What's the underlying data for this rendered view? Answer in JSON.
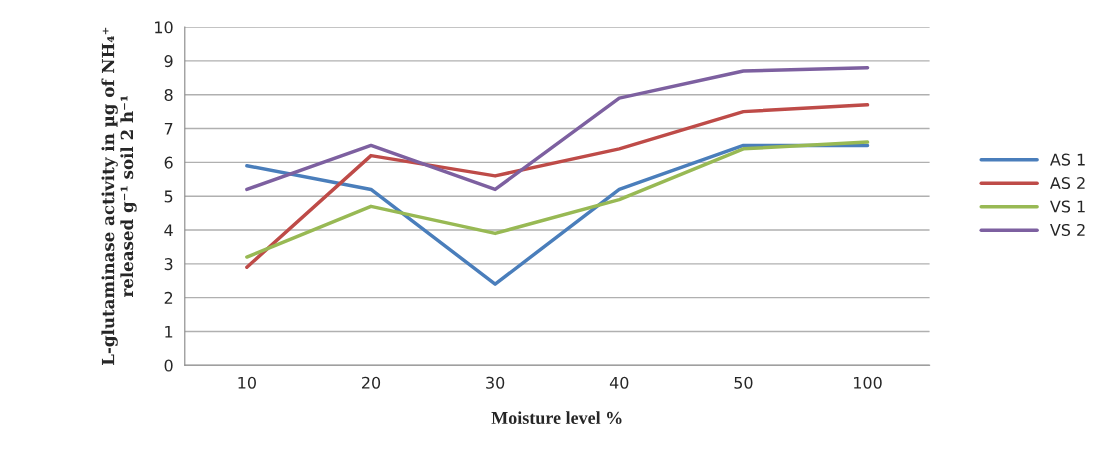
{
  "chart_data": {
    "type": "line",
    "xlabel": "Moisture level %",
    "ylabel": "L-glutaminase activity in µg of NH₄⁺\nreleased g⁻¹ soil 2 h⁻¹",
    "categories": [
      "10",
      "20",
      "30",
      "40",
      "50",
      "100"
    ],
    "series": [
      {
        "name": "AS 1",
        "color": "#4a7ebb",
        "values": [
          5.9,
          5.2,
          2.4,
          5.2,
          6.5,
          6.5
        ]
      },
      {
        "name": "AS 2",
        "color": "#be4b48",
        "values": [
          2.9,
          6.2,
          5.6,
          6.4,
          7.5,
          7.7
        ]
      },
      {
        "name": "VS 1",
        "color": "#98b954",
        "values": [
          3.2,
          4.7,
          3.9,
          4.9,
          6.4,
          6.6
        ]
      },
      {
        "name": "VS 2",
        "color": "#7d60a0",
        "values": [
          5.2,
          6.5,
          5.2,
          7.9,
          8.7,
          8.8
        ]
      }
    ],
    "ylim": [
      0,
      10
    ],
    "yticks": [
      0,
      1,
      2,
      3,
      4,
      5,
      6,
      7,
      8,
      9,
      10
    ],
    "grid": "y",
    "legend": "right",
    "marker": "none",
    "line_style": "solid"
  }
}
